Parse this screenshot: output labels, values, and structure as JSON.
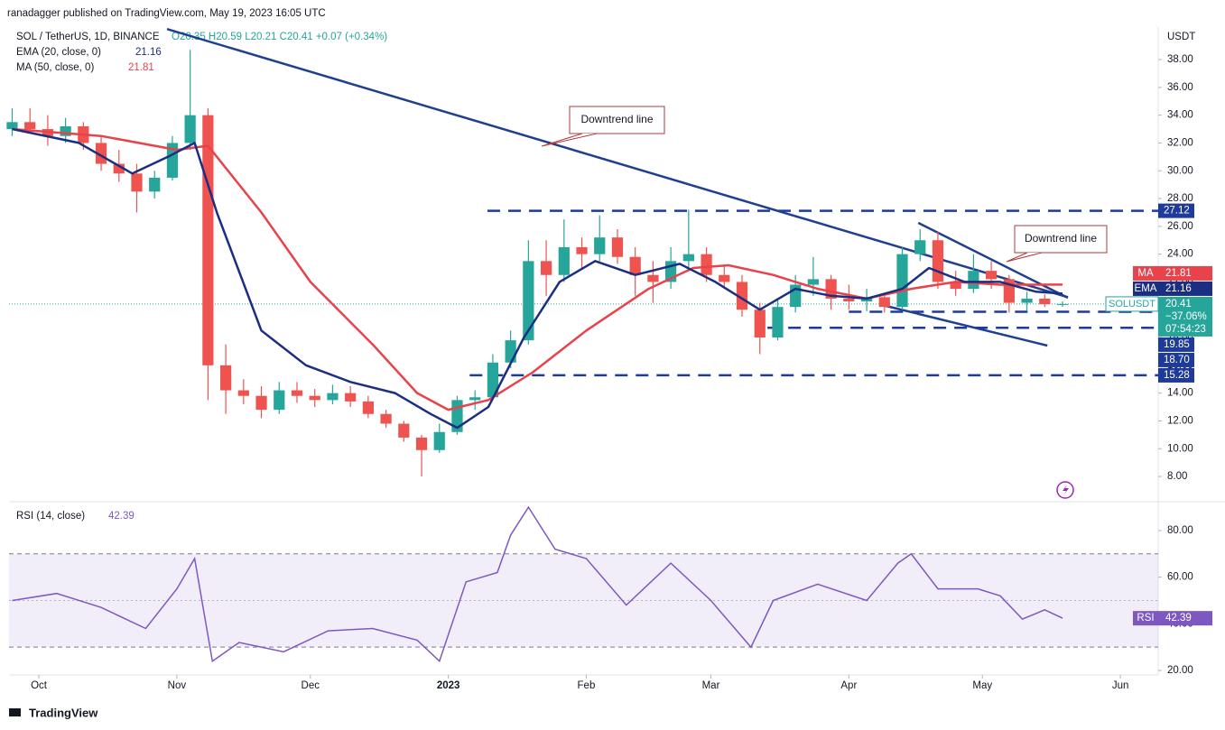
{
  "chart_data": {
    "type": "candlestick",
    "publisher": "ranadagger published on TradingView.com, May 19, 2023 16:05 UTC",
    "symbol": "SOL / TetherUS, 1D, BINANCE",
    "ohlc_text": "O20.35 H20.59 L20.21 C20.41 +0.07 (+0.34%)",
    "currency": "USDT",
    "up_color": "#26a69a",
    "down_color": "#ef5350",
    "x": [
      -6,
      -2,
      2,
      6,
      10,
      14,
      18,
      22,
      26,
      30,
      34,
      38,
      42,
      46,
      50,
      54,
      58,
      62,
      66,
      70,
      74,
      78,
      82,
      86,
      90,
      94,
      98,
      102,
      106,
      110,
      114,
      118,
      122,
      126,
      130,
      134,
      138,
      142,
      146,
      150,
      154,
      158,
      162,
      166,
      170,
      174,
      178,
      182,
      186,
      190,
      194,
      198,
      202,
      206,
      210,
      214,
      218,
      222,
      226,
      230
    ],
    "open": [
      33,
      33.5,
      33,
      32.5,
      33.2,
      32,
      30.5,
      29.8,
      28.5,
      29.5,
      32,
      34,
      16,
      14.2,
      13.8,
      12.8,
      14.2,
      13.8,
      13.5,
      14,
      13.4,
      12.5,
      11.8,
      10.8,
      9.9,
      11.2,
      13.5,
      13.7,
      16.2,
      17.8,
      23.5,
      22.5,
      24.5,
      24,
      25.2,
      23.8,
      22.5,
      22,
      23.5,
      24,
      22.5,
      22,
      20,
      18,
      20.2,
      21.8,
      22.2,
      20.8,
      20.6,
      20.9,
      20.2,
      24,
      25,
      22,
      21.5,
      22.8,
      22.2,
      20.5,
      20.8,
      20.35
    ],
    "high": [
      34.5,
      34.5,
      34,
      33.8,
      33.5,
      32.5,
      31.5,
      30.5,
      30,
      32.5,
      38.7,
      34.5,
      17.5,
      15,
      14.5,
      14.8,
      14.8,
      14.3,
      14.6,
      14.5,
      13.8,
      12.8,
      12,
      11,
      11.8,
      13.8,
      14.2,
      16.8,
      18.5,
      25,
      25,
      26.5,
      25.2,
      26.8,
      25.8,
      24.5,
      23.5,
      24.5,
      27.2,
      24.5,
      23.2,
      22.5,
      20.5,
      20.8,
      22.5,
      23.8,
      22.5,
      21.8,
      21.5,
      21.2,
      24.5,
      25.8,
      25.6,
      22.8,
      24,
      23.5,
      22.5,
      21.3,
      21.1,
      20.59
    ],
    "low": [
      32.5,
      32.8,
      31.8,
      32,
      31.5,
      30,
      29.2,
      27,
      28,
      29.3,
      31.5,
      13.5,
      12.5,
      13.2,
      12.2,
      12.5,
      13.3,
      13,
      13.2,
      13,
      12.2,
      11.5,
      10.5,
      8,
      9.7,
      11,
      12.8,
      13.5,
      15.8,
      17.5,
      21,
      22,
      23,
      23.5,
      23.3,
      21,
      20.5,
      21.5,
      23,
      22,
      21.5,
      19.5,
      16.8,
      17.8,
      19.8,
      21,
      20,
      20,
      19.9,
      19.8,
      20,
      23.5,
      21.5,
      21,
      21.2,
      21.5,
      19.8,
      19.9,
      20.2,
      20.21
    ],
    "close": [
      33.5,
      33,
      32.5,
      33.2,
      32,
      30.5,
      29.8,
      28.5,
      29.5,
      32,
      34,
      16,
      14.2,
      13.8,
      12.8,
      14.2,
      13.8,
      13.5,
      14,
      13.4,
      12.5,
      11.8,
      10.8,
      9.9,
      11.2,
      13.5,
      13.7,
      16.2,
      17.8,
      23.5,
      22.5,
      24.5,
      24,
      25.2,
      23.8,
      22.5,
      22,
      23.5,
      24,
      22.5,
      22,
      20,
      18,
      20.2,
      21.8,
      22.2,
      20.8,
      20.6,
      20.9,
      20.2,
      24,
      25,
      22,
      21.5,
      22.8,
      22.2,
      20.5,
      20.8,
      20.4,
      20.41
    ],
    "xlim": [
      -6.7,
      251.5
    ],
    "xticks": [
      {
        "value": 0,
        "label": "Oct"
      },
      {
        "value": 31,
        "label": "Nov"
      },
      {
        "value": 61,
        "label": "Dec"
      },
      {
        "value": 92,
        "label": "2023"
      },
      {
        "value": 123,
        "label": "Feb"
      },
      {
        "value": 151,
        "label": "Mar"
      },
      {
        "value": 182,
        "label": "Apr"
      },
      {
        "value": 212,
        "label": "May"
      },
      {
        "value": 243,
        "label": "Jun"
      }
    ],
    "ylim": [
      6.38,
      40.34
    ],
    "yticks": [
      {
        "value": 8,
        "label": "8.00"
      },
      {
        "value": 10,
        "label": "10.00"
      },
      {
        "value": 12,
        "label": "12.00"
      },
      {
        "value": 14,
        "label": "14.00"
      },
      {
        "value": 16,
        "label": "16.00"
      },
      {
        "value": 18,
        "label": "18.00"
      },
      {
        "value": 20,
        "label": "20.00"
      },
      {
        "value": 22,
        "label": "22.00"
      },
      {
        "value": 24,
        "label": "24.00"
      },
      {
        "value": 26,
        "label": "26.00"
      },
      {
        "value": 28,
        "label": "28.00"
      },
      {
        "value": 30,
        "label": "30.00"
      },
      {
        "value": 32,
        "label": "32.00"
      },
      {
        "value": 34,
        "label": "34.00"
      },
      {
        "value": 36,
        "label": "36.00"
      },
      {
        "value": 38,
        "label": "38.00"
      }
    ],
    "ema": {
      "name": "EMA (20, close, 0)",
      "tag": "EMA",
      "color": "#1c2e82",
      "x": [
        -6,
        9,
        21,
        29,
        35,
        40,
        50,
        60,
        70,
        80,
        88,
        94,
        101,
        109,
        117,
        125,
        134,
        144,
        152,
        162,
        170,
        178,
        186,
        194,
        200,
        208,
        216,
        224,
        230
      ],
      "values": [
        33,
        32,
        29.8,
        31,
        32,
        27,
        18.5,
        16,
        14.8,
        14,
        12.5,
        11.5,
        13,
        18,
        22,
        23.5,
        22.5,
        23.3,
        22,
        20,
        21.5,
        21,
        20.8,
        21.5,
        23,
        22,
        22,
        21.3,
        21.16
      ]
    },
    "ma": {
      "name": "MA (50, close, 0)",
      "tag": "MA",
      "color": "#e8424a",
      "x": [
        -6,
        14,
        31,
        38,
        50,
        61,
        75,
        85,
        92,
        101,
        111,
        123,
        137,
        147,
        155,
        165,
        175,
        186,
        196,
        206,
        216,
        230
      ],
      "values": [
        33,
        32.5,
        31.5,
        31.8,
        27,
        22,
        17.5,
        14,
        12.8,
        13.5,
        15.5,
        18.5,
        21.5,
        23,
        23.2,
        22.5,
        21.5,
        20.8,
        21.5,
        22,
        21.8,
        21.81
      ]
    },
    "symbol_tag": "SOLUSDT",
    "change_label": "−37.06%",
    "countdown": "07:54:23",
    "level_color": "#1e3a9a",
    "levels": [
      {
        "value": 27.12,
        "start": 100.8
      },
      {
        "value": 19.85,
        "start": 182
      },
      {
        "value": 18.7,
        "label": "18.70",
        "start": 163.7
      },
      {
        "value": 15.28,
        "start": 96.8
      }
    ],
    "trendlines": [
      {
        "x": [
          28.8,
          231.2
        ],
        "y": [
          40.2,
          20.9
        ]
      },
      {
        "x": [
          197.6,
          231.2
        ],
        "y": [
          26.25,
          20.86
        ]
      },
      {
        "x": [
          190,
          226.6
        ],
        "y": [
          20.3,
          17.42
        ]
      }
    ],
    "annotations": [
      "Downtrend line",
      "Downtrend line"
    ],
    "rsi": {
      "name": "RSI (14, close)",
      "tag": "RSI",
      "color": "#7e57c2",
      "x": [
        -6,
        4,
        14,
        24,
        31,
        35,
        39,
        45,
        55,
        65,
        75,
        85,
        90,
        96,
        103,
        106,
        110,
        116,
        123,
        132,
        142,
        151,
        160,
        165,
        175,
        186,
        193,
        196,
        202,
        211,
        216,
        221,
        226,
        230
      ],
      "values": [
        50,
        53,
        47,
        38,
        55,
        68,
        24,
        32,
        28,
        37,
        38,
        33,
        24,
        58,
        62,
        78,
        90,
        72,
        68,
        48,
        66,
        50,
        30,
        50,
        57,
        50,
        66,
        70,
        55,
        55,
        52,
        42,
        46,
        42.39
      ],
      "ylim": [
        18.06,
        91.6
      ],
      "yticks": [
        {
          "value": 20,
          "label": "20.00"
        },
        {
          "value": 40,
          "label": "40.00"
        },
        {
          "value": 60,
          "label": "60.00"
        },
        {
          "value": 80,
          "label": "80.00"
        }
      ],
      "band": [
        30,
        70
      ]
    },
    "footer": "TradingView"
  }
}
